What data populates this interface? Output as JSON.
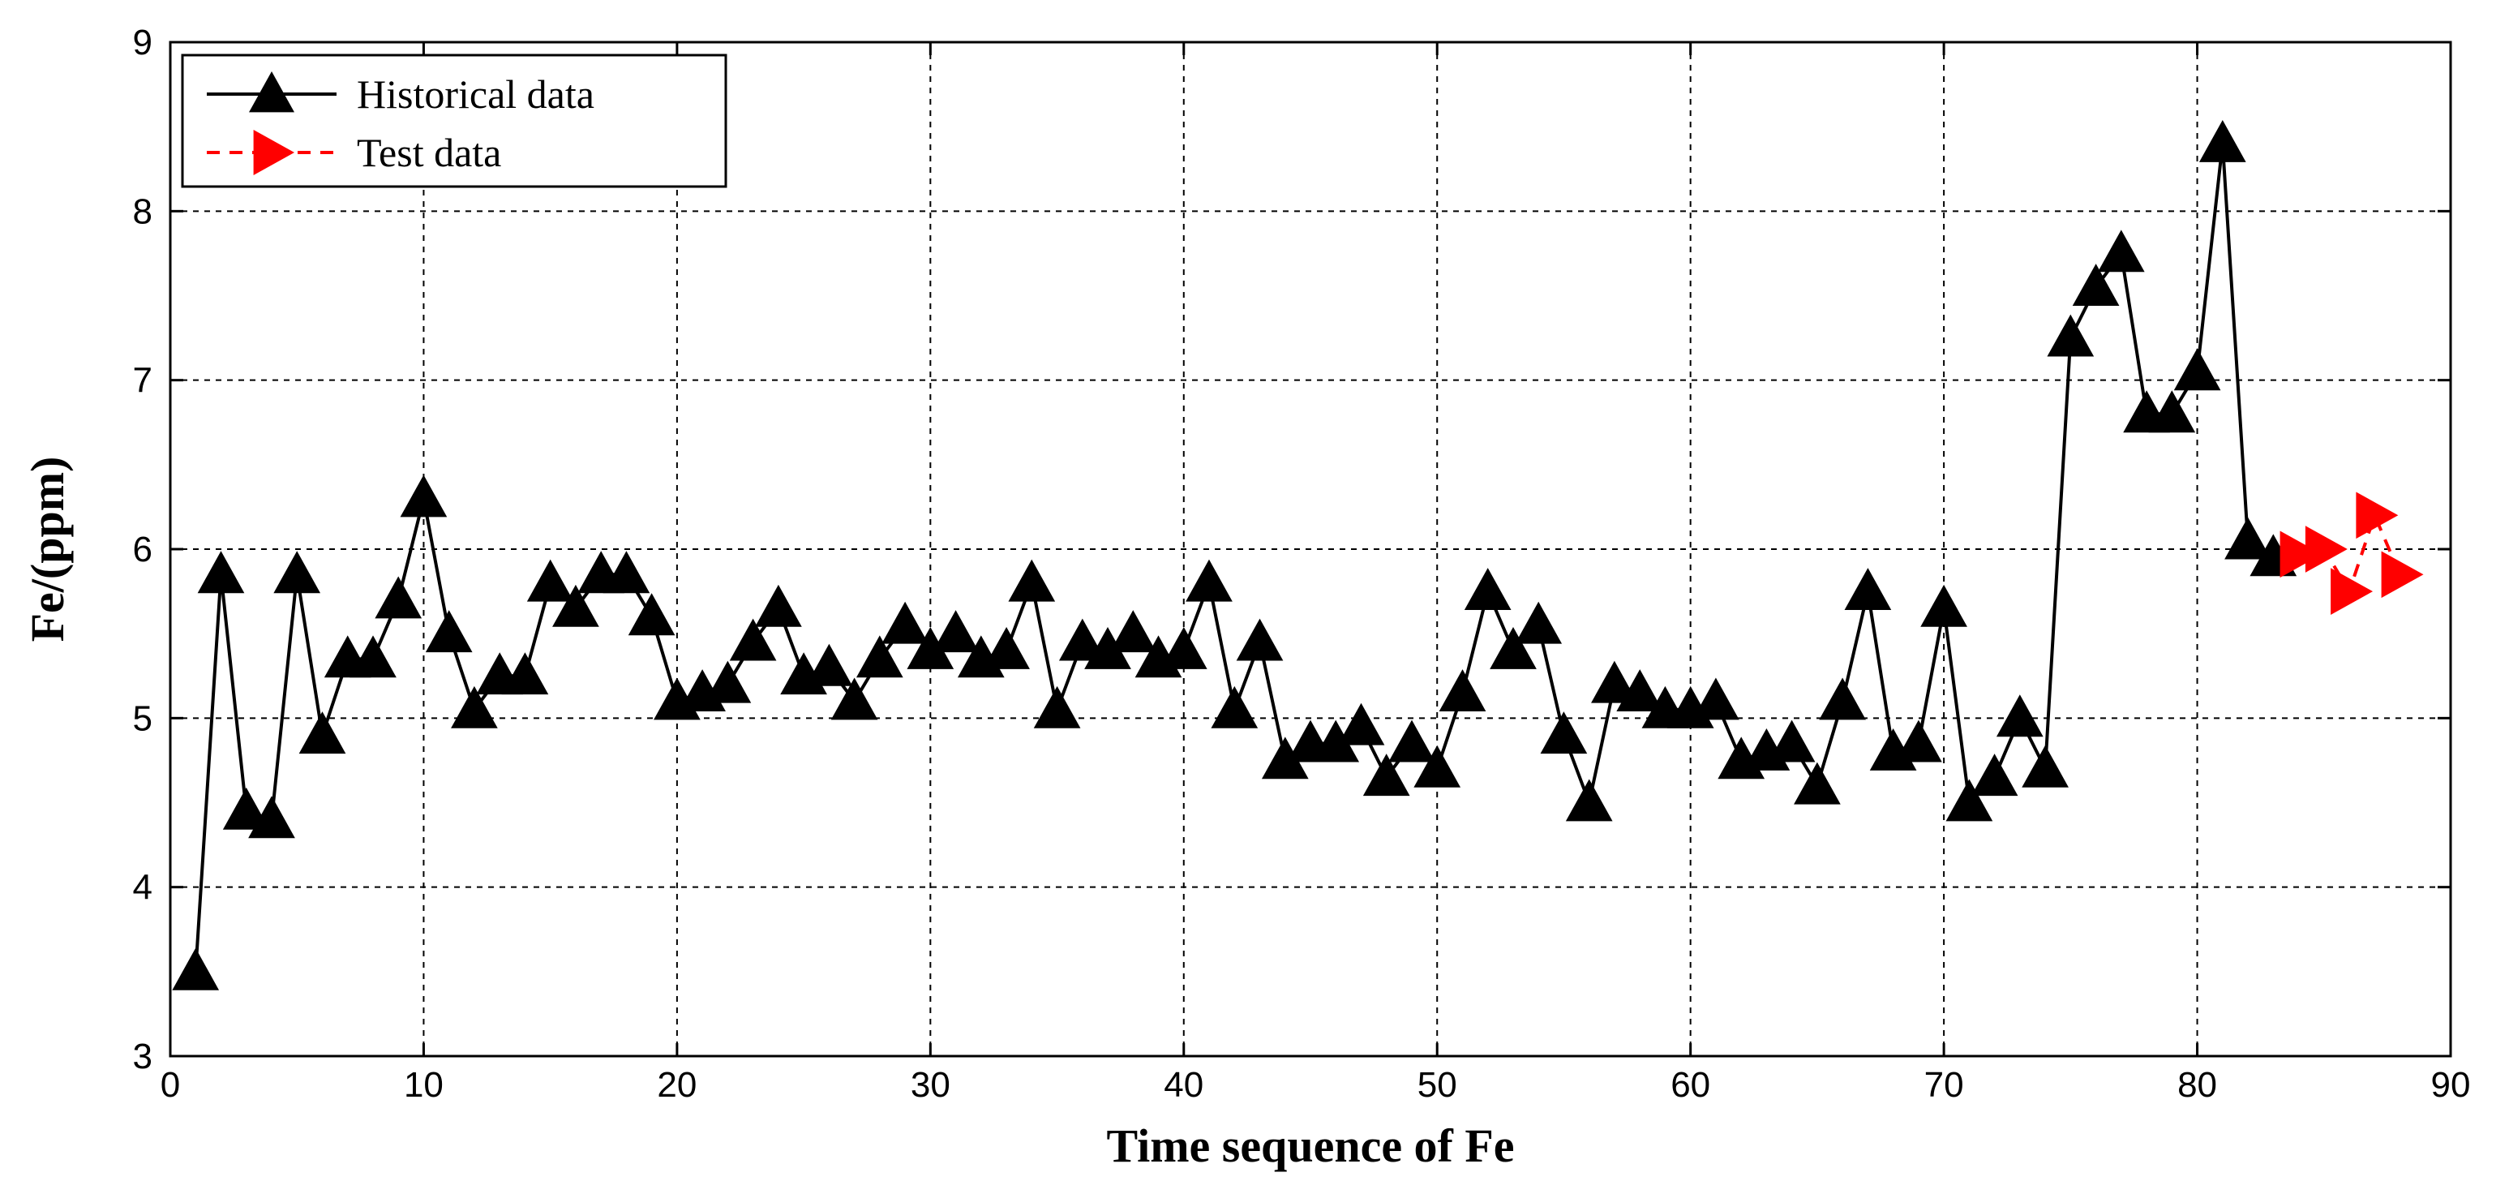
{
  "chart_data": {
    "type": "line",
    "title": "",
    "xlabel": "Time sequence of Fe",
    "ylabel": "Fe/(ppm)",
    "xlim": [
      0,
      90
    ],
    "ylim": [
      3,
      9
    ],
    "xticks": [
      0,
      10,
      20,
      30,
      40,
      50,
      60,
      70,
      80,
      90
    ],
    "yticks": [
      3,
      4,
      5,
      6,
      7,
      8,
      9
    ],
    "grid": true,
    "legend_position": "top-left",
    "series": [
      {
        "name": "Historical data",
        "color": "#000000",
        "line_style": "solid",
        "marker": "triangle-up",
        "x": [
          1,
          2,
          3,
          4,
          5,
          6,
          7,
          8,
          9,
          10,
          11,
          12,
          13,
          14,
          15,
          16,
          17,
          18,
          19,
          20,
          21,
          22,
          23,
          24,
          25,
          26,
          27,
          28,
          29,
          30,
          31,
          32,
          33,
          34,
          35,
          36,
          37,
          38,
          39,
          40,
          41,
          42,
          43,
          44,
          45,
          46,
          47,
          48,
          49,
          50,
          51,
          52,
          53,
          54,
          55,
          56,
          57,
          58,
          59,
          60,
          61,
          62,
          63,
          64,
          65,
          66,
          67,
          68,
          69,
          70,
          71,
          72,
          73,
          74,
          75,
          76,
          77,
          78,
          79,
          80,
          81,
          82,
          83
        ],
        "y": [
          3.5,
          5.85,
          4.45,
          4.4,
          5.85,
          4.9,
          5.35,
          5.35,
          5.7,
          6.3,
          5.5,
          5.05,
          5.25,
          5.25,
          5.8,
          5.65,
          5.85,
          5.85,
          5.6,
          5.1,
          5.15,
          5.2,
          5.45,
          5.65,
          5.25,
          5.3,
          5.1,
          5.35,
          5.55,
          5.4,
          5.5,
          5.35,
          5.4,
          5.8,
          5.05,
          5.45,
          5.4,
          5.5,
          5.35,
          5.4,
          5.8,
          5.05,
          5.45,
          4.75,
          4.85,
          4.85,
          4.95,
          4.65,
          4.85,
          4.7,
          5.15,
          5.75,
          5.4,
          5.55,
          4.9,
          4.5,
          5.2,
          5.15,
          5.05,
          5.05,
          5.1,
          4.75,
          4.8,
          4.85,
          4.6,
          5.1,
          5.75,
          4.8,
          4.85,
          5.65,
          4.5,
          4.65,
          5.0,
          4.7,
          7.25,
          7.55,
          7.75,
          6.8,
          6.8,
          7.05,
          8.4,
          6.05,
          5.95
        ]
      },
      {
        "name": "Test data",
        "color": "#ff0000",
        "line_style": "dashed",
        "marker": "triangle-right",
        "x": [
          84,
          85,
          86,
          87,
          88
        ],
        "y": [
          5.97,
          6.0,
          5.75,
          6.2,
          5.85
        ]
      }
    ]
  }
}
